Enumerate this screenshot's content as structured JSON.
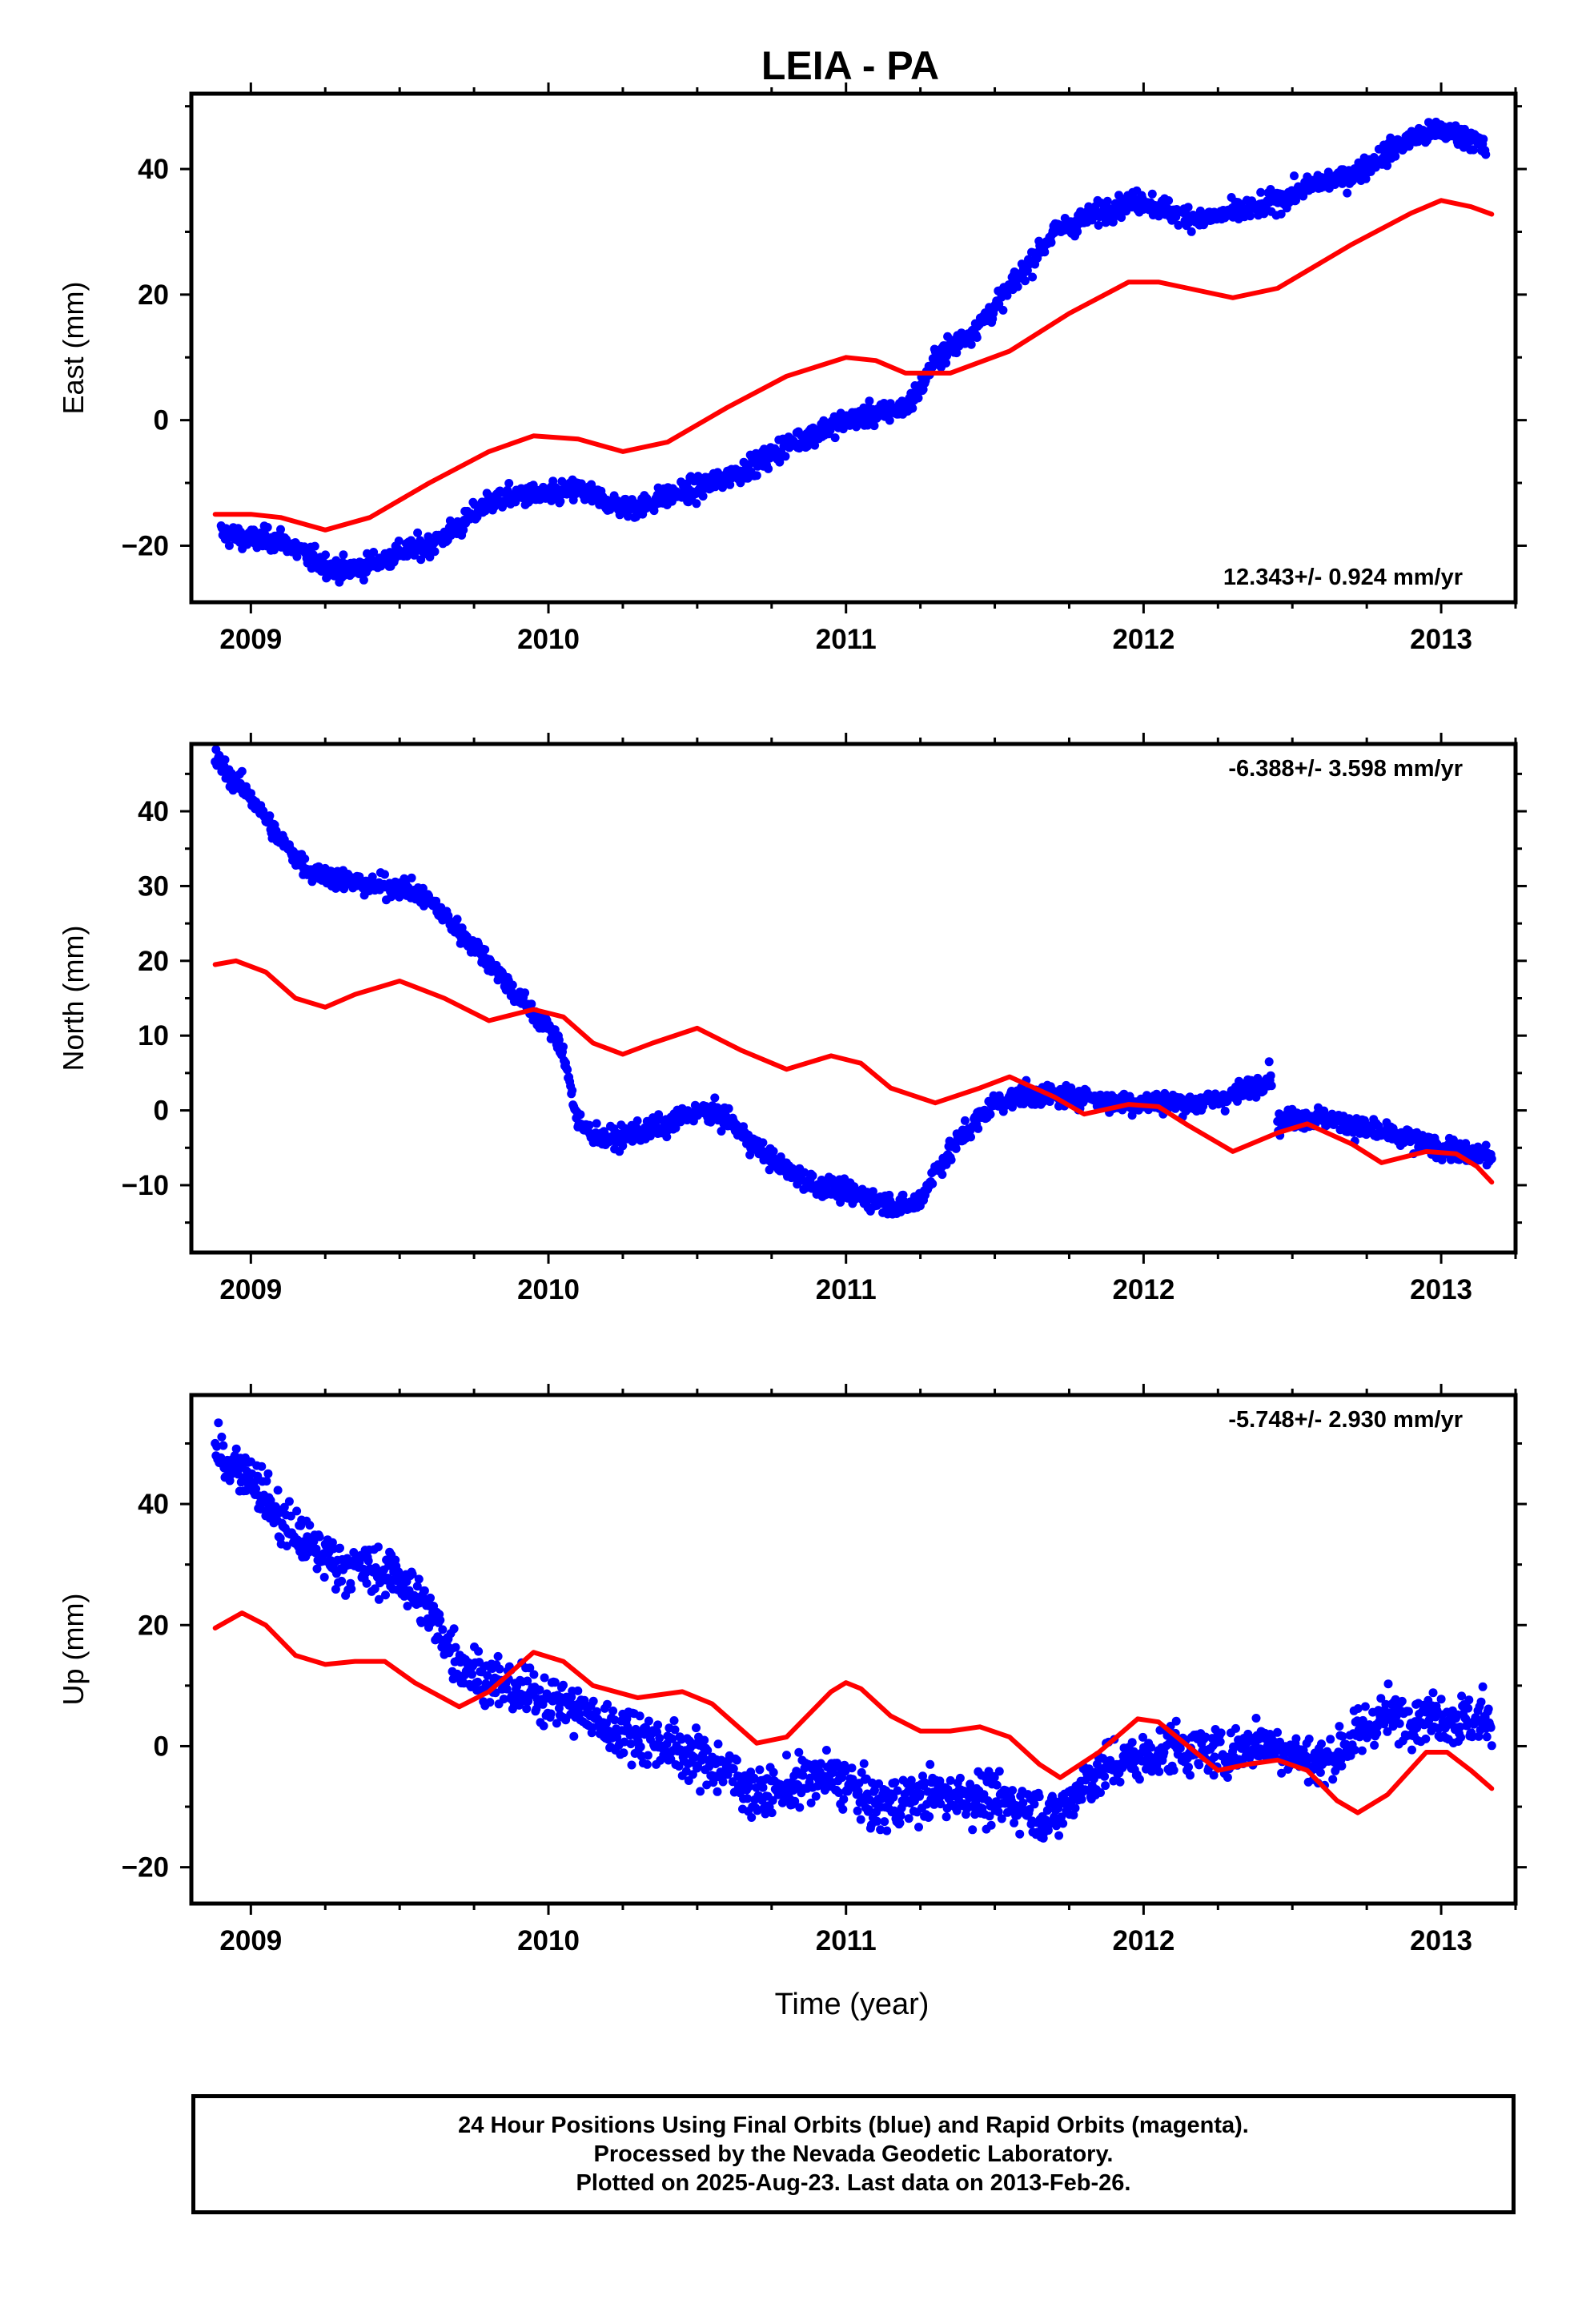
{
  "title": "LEIA - PA",
  "xlabel": "Time (year)",
  "footer": {
    "line1": "24 Hour Positions Using Final Orbits (blue) and Rapid Orbits (magenta).",
    "line2": "Processed by the Nevada Geodetic Laboratory.",
    "line3": "Plotted on 2025-Aug-23. Last data on 2013-Feb-26."
  },
  "colors": {
    "data": "#0000ff",
    "model": "#ff0000",
    "frame": "#000000"
  },
  "chart_data": [
    {
      "type": "scatter",
      "panel": "east",
      "ylabel": "East (mm)",
      "rate_label": "12.343+/- 0.924 mm/yr",
      "rate_position": "bottom-right",
      "xlim": [
        2008.8,
        2013.25
      ],
      "ylim": [
        -29,
        52
      ],
      "xticks": [
        2009,
        2010,
        2011,
        2012,
        2013
      ],
      "yticks": [
        -20,
        0,
        20,
        40
      ],
      "series": [
        {
          "kind": "points",
          "noise": 1.5,
          "points": [
            [
              2008.9,
              -18
            ],
            [
              2009.0,
              -19
            ],
            [
              2009.1,
              -19
            ],
            [
              2009.2,
              -22
            ],
            [
              2009.3,
              -24
            ],
            [
              2009.4,
              -23
            ],
            [
              2009.5,
              -21
            ],
            [
              2009.6,
              -20
            ],
            [
              2009.7,
              -17
            ],
            [
              2009.8,
              -13
            ],
            [
              2009.9,
              -12
            ],
            [
              2010.0,
              -12
            ],
            [
              2010.1,
              -11
            ],
            [
              2010.2,
              -13
            ],
            [
              2010.3,
              -14
            ],
            [
              2010.4,
              -12
            ],
            [
              2010.5,
              -11
            ],
            [
              2010.6,
              -9
            ],
            [
              2010.7,
              -7
            ],
            [
              2010.8,
              -4
            ],
            [
              2010.9,
              -2
            ],
            [
              2011.0,
              0
            ],
            [
              2011.1,
              1
            ],
            [
              2011.2,
              2
            ],
            [
              2011.25,
              5
            ],
            [
              2011.3,
              10
            ],
            [
              2011.4,
              13
            ],
            [
              2011.5,
              18
            ],
            [
              2011.6,
              24
            ],
            [
              2011.7,
              30
            ],
            [
              2011.8,
              32
            ],
            [
              2011.9,
              34
            ],
            [
              2012.0,
              35
            ],
            [
              2012.1,
              33
            ],
            [
              2012.2,
              32
            ],
            [
              2012.3,
              33
            ],
            [
              2012.4,
              34
            ],
            [
              2012.5,
              36
            ],
            [
              2012.6,
              38
            ],
            [
              2012.7,
              39
            ],
            [
              2012.8,
              42
            ],
            [
              2012.9,
              45
            ],
            [
              2013.0,
              46
            ],
            [
              2013.1,
              45
            ],
            [
              2013.15,
              43
            ]
          ]
        },
        {
          "kind": "line",
          "points": [
            [
              2008.88,
              -15
            ],
            [
              2009.0,
              -15
            ],
            [
              2009.1,
              -15.5
            ],
            [
              2009.25,
              -17.5
            ],
            [
              2009.4,
              -15.5
            ],
            [
              2009.6,
              -10
            ],
            [
              2009.8,
              -5
            ],
            [
              2009.95,
              -2.5
            ],
            [
              2010.1,
              -3
            ],
            [
              2010.25,
              -5
            ],
            [
              2010.4,
              -3.5
            ],
            [
              2010.6,
              2
            ],
            [
              2010.8,
              7
            ],
            [
              2011.0,
              10
            ],
            [
              2011.1,
              9.5
            ],
            [
              2011.2,
              7.5
            ],
            [
              2011.35,
              7.5
            ],
            [
              2011.55,
              11
            ],
            [
              2011.75,
              17
            ],
            [
              2011.95,
              22
            ],
            [
              2012.05,
              22
            ],
            [
              2012.15,
              21
            ],
            [
              2012.3,
              19.5
            ],
            [
              2012.45,
              21
            ],
            [
              2012.7,
              28
            ],
            [
              2012.9,
              33
            ],
            [
              2013.0,
              35
            ],
            [
              2013.1,
              34
            ],
            [
              2013.17,
              32.8
            ]
          ]
        }
      ]
    },
    {
      "type": "scatter",
      "panel": "north",
      "ylabel": "North (mm)",
      "rate_label": "-6.388+/- 3.598 mm/yr",
      "rate_position": "top-right",
      "xlim": [
        2008.8,
        2013.25
      ],
      "ylim": [
        -19,
        49
      ],
      "xticks": [
        2009,
        2010,
        2011,
        2012,
        2013
      ],
      "yticks": [
        -10,
        0,
        10,
        20,
        30,
        40
      ],
      "series": [
        {
          "kind": "points",
          "noise": 1.2,
          "points": [
            [
              2008.88,
              47
            ],
            [
              2008.95,
              44
            ],
            [
              2009.0,
              42
            ],
            [
              2009.05,
              39
            ],
            [
              2009.1,
              36
            ],
            [
              2009.2,
              32
            ],
            [
              2009.3,
              31
            ],
            [
              2009.4,
              30
            ],
            [
              2009.5,
              30
            ],
            [
              2009.6,
              28
            ],
            [
              2009.7,
              24
            ],
            [
              2009.8,
              20
            ],
            [
              2009.9,
              15
            ],
            [
              2010.0,
              11
            ],
            [
              2010.05,
              8
            ],
            [
              2010.1,
              -2
            ],
            [
              2010.2,
              -4
            ],
            [
              2010.3,
              -3
            ],
            [
              2010.4,
              -2
            ],
            [
              2010.5,
              0
            ],
            [
              2010.6,
              -1
            ],
            [
              2010.7,
              -5
            ],
            [
              2010.8,
              -8
            ],
            [
              2010.9,
              -10
            ],
            [
              2011.0,
              -11
            ],
            [
              2011.1,
              -12
            ],
            [
              2011.2,
              -13
            ],
            [
              2011.25,
              -12
            ],
            [
              2011.3,
              -8
            ],
            [
              2011.4,
              -3
            ],
            [
              2011.5,
              1
            ],
            [
              2011.6,
              2
            ],
            [
              2011.7,
              2
            ],
            [
              2011.8,
              2
            ],
            [
              2011.9,
              1
            ],
            [
              2012.0,
              1
            ],
            [
              2012.1,
              1
            ],
            [
              2012.2,
              1
            ],
            [
              2012.3,
              2
            ],
            [
              2012.4,
              4
            ],
            [
              2012.43,
              5
            ]
          ]
        },
        {
          "kind": "points",
          "noise": 1.2,
          "points": [
            [
              2012.45,
              -2
            ],
            [
              2012.5,
              -1
            ],
            [
              2012.6,
              -1
            ],
            [
              2012.7,
              -2
            ],
            [
              2012.8,
              -3
            ],
            [
              2012.9,
              -4
            ],
            [
              2013.0,
              -5
            ],
            [
              2013.1,
              -6
            ],
            [
              2013.17,
              -6
            ]
          ]
        },
        {
          "kind": "line",
          "points": [
            [
              2008.88,
              19.5
            ],
            [
              2008.95,
              20
            ],
            [
              2009.05,
              18.5
            ],
            [
              2009.15,
              15
            ],
            [
              2009.25,
              13.8
            ],
            [
              2009.35,
              15.5
            ],
            [
              2009.5,
              17.3
            ],
            [
              2009.65,
              15
            ],
            [
              2009.8,
              12
            ],
            [
              2009.95,
              13.5
            ],
            [
              2010.05,
              12.5
            ],
            [
              2010.15,
              9
            ],
            [
              2010.25,
              7.5
            ],
            [
              2010.35,
              9
            ],
            [
              2010.5,
              11
            ],
            [
              2010.65,
              8
            ],
            [
              2010.8,
              5.5
            ],
            [
              2010.95,
              7.3
            ],
            [
              2011.05,
              6.3
            ],
            [
              2011.15,
              3
            ],
            [
              2011.3,
              1
            ],
            [
              2011.45,
              3
            ],
            [
              2011.55,
              4.5
            ],
            [
              2011.7,
              1.8
            ],
            [
              2011.8,
              -0.5
            ],
            [
              2011.95,
              0.8
            ],
            [
              2012.05,
              0.5
            ],
            [
              2012.15,
              -2
            ],
            [
              2012.3,
              -5.5
            ],
            [
              2012.45,
              -3
            ],
            [
              2012.55,
              -1.8
            ],
            [
              2012.7,
              -4.5
            ],
            [
              2012.8,
              -7
            ],
            [
              2012.95,
              -5.5
            ],
            [
              2013.05,
              -5.8
            ],
            [
              2013.12,
              -7.5
            ],
            [
              2013.17,
              -9.6
            ]
          ]
        }
      ]
    },
    {
      "type": "scatter",
      "panel": "up",
      "ylabel": "Up (mm)",
      "rate_label": "-5.748+/- 2.930 mm/yr",
      "rate_position": "top-right",
      "xlim": [
        2008.8,
        2013.25
      ],
      "ylim": [
        -26,
        58
      ],
      "xticks": [
        2009,
        2010,
        2011,
        2012,
        2013
      ],
      "yticks": [
        -20,
        0,
        20,
        40
      ],
      "series": [
        {
          "kind": "points",
          "noise": 3.5,
          "points": [
            [
              2008.88,
              48
            ],
            [
              2009.0,
              45
            ],
            [
              2009.1,
              37
            ],
            [
              2009.2,
              33
            ],
            [
              2009.3,
              30
            ],
            [
              2009.4,
              29
            ],
            [
              2009.5,
              28
            ],
            [
              2009.6,
              22
            ],
            [
              2009.7,
              14
            ],
            [
              2009.8,
              11
            ],
            [
              2009.9,
              9
            ],
            [
              2010.0,
              8
            ],
            [
              2010.1,
              6
            ],
            [
              2010.2,
              3
            ],
            [
              2010.3,
              2
            ],
            [
              2010.4,
              0
            ],
            [
              2010.5,
              -2
            ],
            [
              2010.6,
              -4
            ],
            [
              2010.7,
              -8
            ],
            [
              2010.8,
              -7
            ],
            [
              2010.9,
              -5
            ],
            [
              2011.0,
              -6
            ],
            [
              2011.1,
              -10
            ],
            [
              2011.2,
              -9
            ],
            [
              2011.3,
              -8
            ],
            [
              2011.4,
              -8
            ],
            [
              2011.5,
              -9
            ],
            [
              2011.6,
              -10
            ],
            [
              2011.7,
              -12
            ],
            [
              2011.8,
              -6
            ],
            [
              2011.9,
              -3
            ],
            [
              2012.0,
              -2
            ],
            [
              2012.1,
              0
            ],
            [
              2012.2,
              -1
            ],
            [
              2012.3,
              -1
            ],
            [
              2012.4,
              1
            ],
            [
              2012.5,
              -1
            ],
            [
              2012.6,
              -3
            ],
            [
              2012.7,
              1
            ],
            [
              2012.8,
              5
            ],
            [
              2012.9,
              5
            ],
            [
              2013.0,
              5
            ],
            [
              2013.1,
              4
            ],
            [
              2013.17,
              5
            ]
          ]
        },
        {
          "kind": "line",
          "points": [
            [
              2008.88,
              19.5
            ],
            [
              2008.97,
              22
            ],
            [
              2009.05,
              20
            ],
            [
              2009.15,
              15
            ],
            [
              2009.25,
              13.5
            ],
            [
              2009.35,
              14
            ],
            [
              2009.45,
              14
            ],
            [
              2009.55,
              10.5
            ],
            [
              2009.7,
              6.5
            ],
            [
              2009.8,
              9
            ],
            [
              2009.95,
              15.5
            ],
            [
              2010.05,
              14
            ],
            [
              2010.15,
              10
            ],
            [
              2010.3,
              8
            ],
            [
              2010.45,
              9
            ],
            [
              2010.55,
              7
            ],
            [
              2010.7,
              0.5
            ],
            [
              2010.8,
              1.5
            ],
            [
              2010.95,
              9
            ],
            [
              2011.0,
              10.5
            ],
            [
              2011.05,
              9.5
            ],
            [
              2011.15,
              5
            ],
            [
              2011.25,
              2.5
            ],
            [
              2011.35,
              2.5
            ],
            [
              2011.45,
              3.2
            ],
            [
              2011.55,
              1.5
            ],
            [
              2011.65,
              -3
            ],
            [
              2011.72,
              -5.2
            ],
            [
              2011.85,
              -1
            ],
            [
              2011.98,
              4.5
            ],
            [
              2012.05,
              4
            ],
            [
              2012.15,
              0
            ],
            [
              2012.25,
              -4
            ],
            [
              2012.35,
              -3
            ],
            [
              2012.45,
              -2.3
            ],
            [
              2012.55,
              -4
            ],
            [
              2012.65,
              -9
            ],
            [
              2012.72,
              -11
            ],
            [
              2012.82,
              -8
            ],
            [
              2012.95,
              -1
            ],
            [
              2013.02,
              -1
            ],
            [
              2013.1,
              -4
            ],
            [
              2013.17,
              -7
            ]
          ]
        }
      ]
    }
  ]
}
